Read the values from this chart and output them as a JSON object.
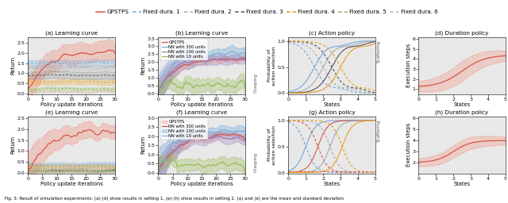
{
  "title": "Fig. 3: Result of simulation experiments: (a)-(d) show results in setting 1, (e)-(h) show results in setting 2. (a) and (e) are the mean and standard deviation",
  "legend_items": [
    {
      "label": "GPSTPS",
      "color": "#d9534a",
      "linestyle": "-"
    },
    {
      "label": "Fixed dura. 1",
      "color": "#6fa8dc",
      "linestyle": "--"
    },
    {
      "label": "Fixed dura. 2",
      "color": "#aaaaaa",
      "linestyle": "--"
    },
    {
      "label": "Fixed dura. 3",
      "color": "#555555",
      "linestyle": "--"
    },
    {
      "label": "Fixed dura. 4",
      "color": "#e6a020",
      "linestyle": "--"
    },
    {
      "label": "Fixed dura. 5",
      "color": "#93b84a",
      "linestyle": "--"
    },
    {
      "label": "Fixed dura. 6",
      "color": "#d4b8a0",
      "linestyle": "--"
    }
  ],
  "nn_legend_items": [
    {
      "label": "GPSTPS",
      "color": "#d9534a"
    },
    {
      "label": "NN with 300 units",
      "color": "#6fa8dc"
    },
    {
      "label": "NN with 100 units",
      "color": "#9b7bb8"
    },
    {
      "label": "NN with 10 units",
      "color": "#93b84a"
    }
  ],
  "background_color": "#e8e8e8",
  "gpstps_color": "#d9534a",
  "gpstps_fill_color": "#f0a090",
  "fixed_colors": [
    "#6fa8dc",
    "#aaaaaa",
    "#555555",
    "#e6a020",
    "#93b84a",
    "#d4b8a0"
  ],
  "fixed_fill_alphas": [
    0.25,
    0.25,
    0.2,
    0.25,
    0.2,
    0.15
  ],
  "nn_colors": [
    "#d9534a",
    "#6fa8dc",
    "#9b7bb8",
    "#93b84a"
  ],
  "action_colors_top": [
    "#6fa8dc",
    "#aaaaaa",
    "#555555",
    "#e6a020"
  ],
  "action_colors_bot": [
    "#6fa8dc",
    "#d9534a",
    "#aaaaaa",
    "#e6a020"
  ],
  "dur_color": "#d9534a",
  "dur_fill": "#f0a090"
}
